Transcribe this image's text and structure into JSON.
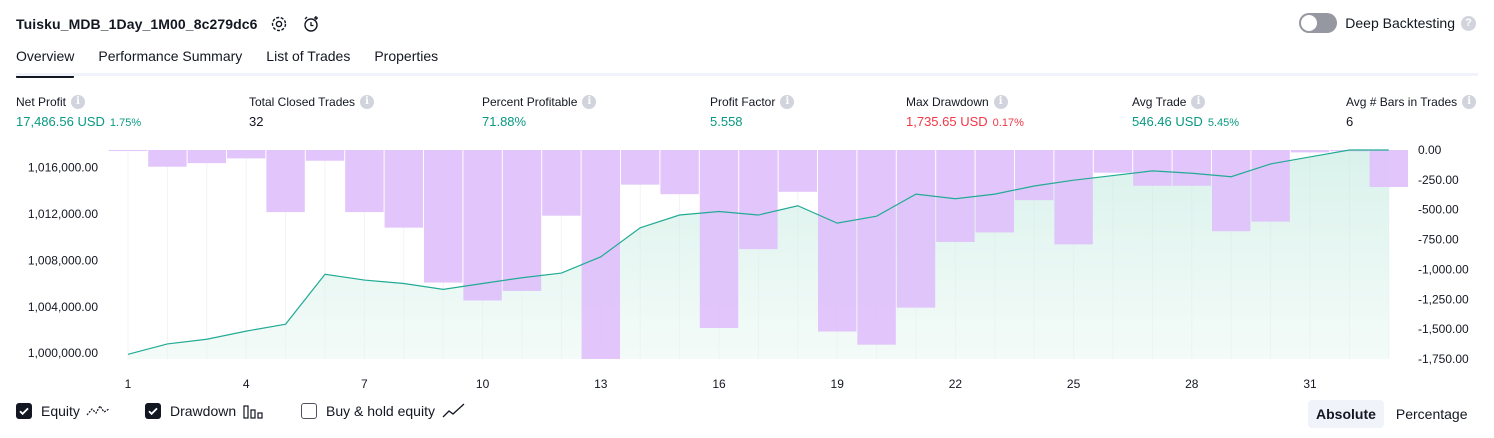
{
  "header": {
    "title": "Tuisku_MDB_1Day_1M00_8c279dc6",
    "deep_backtesting_label": "Deep Backtesting",
    "deep_backtesting_on": false
  },
  "tabs": [
    {
      "label": "Overview",
      "active": true
    },
    {
      "label": "Performance Summary",
      "active": false
    },
    {
      "label": "List of Trades",
      "active": false
    },
    {
      "label": "Properties",
      "active": false
    }
  ],
  "metrics": [
    {
      "label": "Net Profit",
      "value": "17,486.56 USD",
      "pct": "1.75%",
      "color": "#089981"
    },
    {
      "label": "Total Closed Trades",
      "value": "32",
      "pct": "",
      "color": "#131722"
    },
    {
      "label": "Percent Profitable",
      "value": "71.88%",
      "pct": "",
      "color": "#089981"
    },
    {
      "label": "Profit Factor",
      "value": "5.558",
      "pct": "",
      "color": "#089981"
    },
    {
      "label": "Max Drawdown",
      "value": "1,735.65 USD",
      "pct": "0.17%",
      "color": "#f23645"
    },
    {
      "label": "Avg Trade",
      "value": "546.46 USD",
      "pct": "5.45%",
      "color": "#089981"
    },
    {
      "label": "Avg # Bars in Trades",
      "value": "6",
      "pct": "",
      "color": "#131722"
    }
  ],
  "legend": {
    "equity_label": "Equity",
    "equity_checked": true,
    "drawdown_label": "Drawdown",
    "drawdown_checked": true,
    "buyhold_label": "Buy & hold equity",
    "buyhold_checked": false
  },
  "mode": {
    "absolute_label": "Absolute",
    "percentage_label": "Percentage",
    "selected": "Absolute"
  },
  "colors": {
    "equity_line": "#22ab94",
    "equity_fill_top": "#bfe8dd",
    "drawdown_bar": "#dfc2fb",
    "drawdown_bar_edge": "#c9a6f5",
    "accent_green": "#089981",
    "accent_red": "#f23645"
  },
  "chart_data": {
    "type": "line",
    "x": [
      1,
      2,
      3,
      4,
      5,
      6,
      7,
      8,
      9,
      10,
      11,
      12,
      13,
      14,
      15,
      16,
      17,
      18,
      19,
      20,
      21,
      22,
      23,
      24,
      25,
      26,
      27,
      28,
      29,
      30,
      31,
      32,
      33
    ],
    "x_ticks": [
      "1",
      "4",
      "7",
      "10",
      "13",
      "16",
      "19",
      "22",
      "25",
      "28",
      "31"
    ],
    "y_left_ticks": [
      "1,000,000.00",
      "1,004,000.00",
      "1,008,000.00",
      "1,012,000.00",
      "1,016,000.00"
    ],
    "y_right_ticks": [
      "0.00",
      "-250.00",
      "-500.00",
      "-750.00",
      "-1,000.00",
      "-1,250.00",
      "-1,500.00",
      "-1,750.00"
    ],
    "series": [
      {
        "name": "Equity",
        "axis": "left",
        "values": [
          999900,
          1000800,
          1001200,
          1001900,
          1002500,
          1006800,
          1006300,
          1006000,
          1005500,
          1006000,
          1006500,
          1006900,
          1008300,
          1010800,
          1011900,
          1012200,
          1011900,
          1012700,
          1011200,
          1011800,
          1013700,
          1013300,
          1013700,
          1014400,
          1014900,
          1015300,
          1015700,
          1015500,
          1015200,
          1016300,
          1016900,
          1017500,
          1017500
        ]
      },
      {
        "name": "Drawdown",
        "axis": "right",
        "type": "bar",
        "values": [
          0,
          -140,
          -110,
          -70,
          -520,
          -90,
          -520,
          -650,
          -1110,
          -1260,
          -1180,
          -550,
          -1750,
          -290,
          -370,
          -1490,
          -830,
          -350,
          -1520,
          -1630,
          -1320,
          -770,
          -690,
          -420,
          -790,
          -190,
          -300,
          -300,
          -680,
          -600,
          -20,
          -10,
          -310
        ]
      }
    ],
    "y_left_range": [
      999500,
      1017500
    ],
    "y_right_range": [
      -1750,
      0
    ],
    "grid": "vertical"
  }
}
